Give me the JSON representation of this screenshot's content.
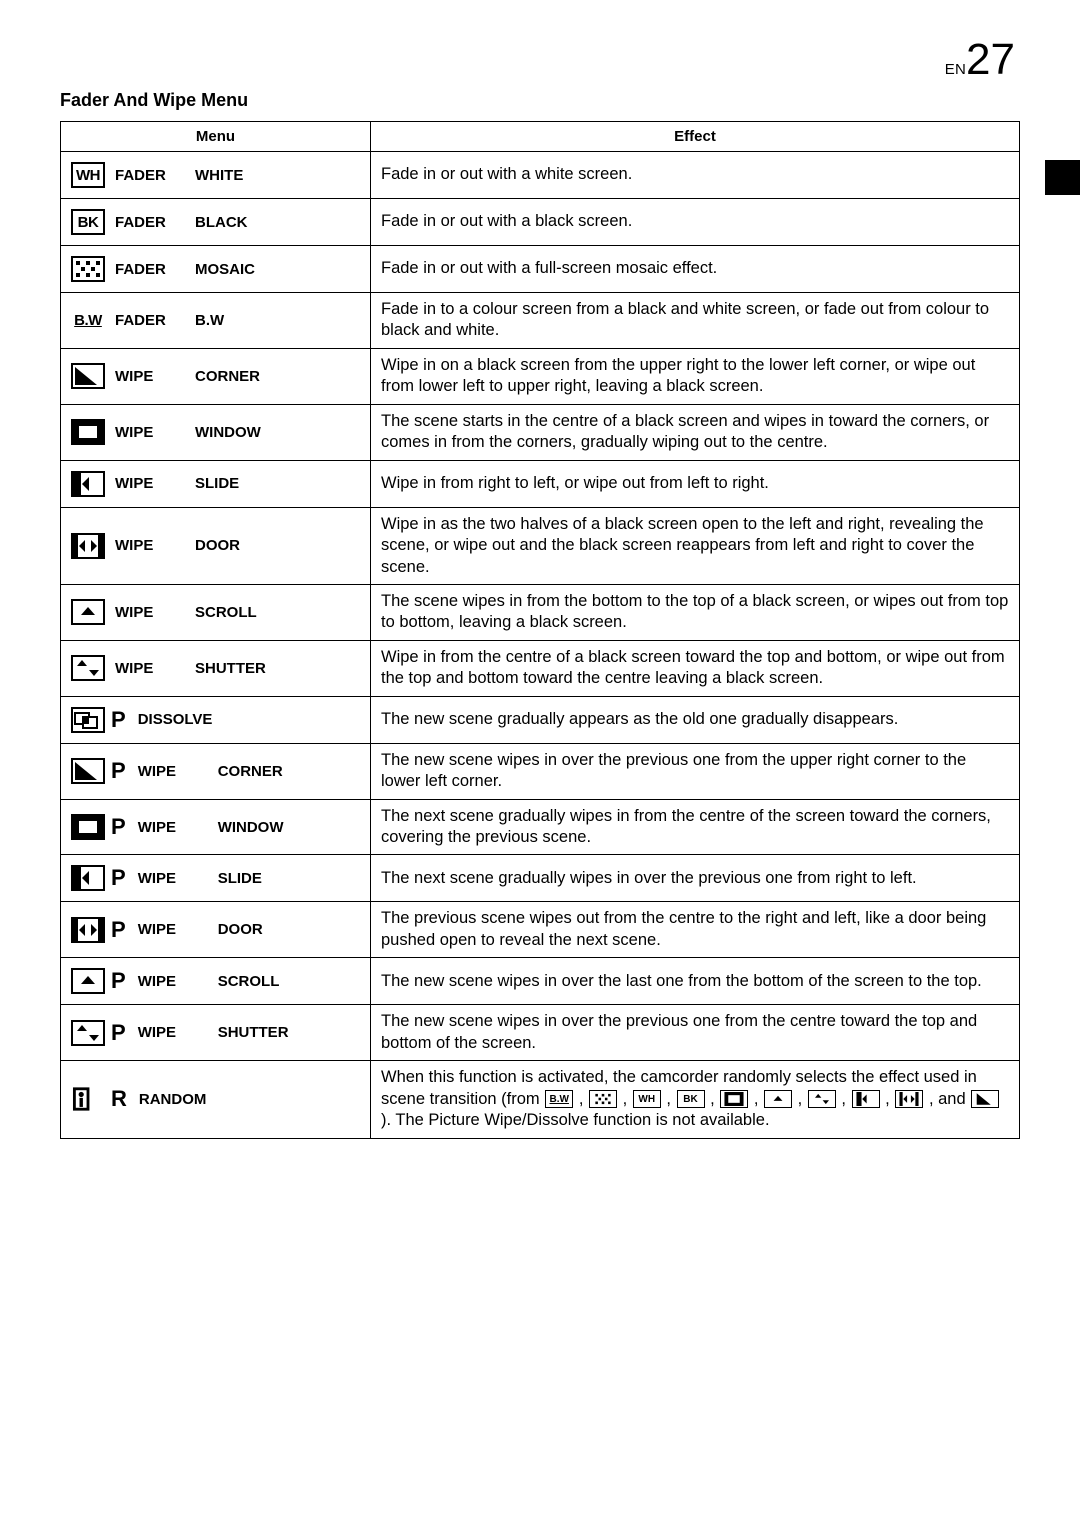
{
  "page_label_prefix": "EN",
  "page_number": "27",
  "title": "Fader And Wipe Menu",
  "headers": {
    "menu": "Menu",
    "effect": "Effect"
  },
  "rows": [
    {
      "icon_text": "WH",
      "label1": "FADER",
      "label2": "WHITE",
      "effect": "Fade in or out with a white screen."
    },
    {
      "icon_text": "BK",
      "label1": "FADER",
      "label2": "BLACK",
      "effect": "Fade in or out with a black screen."
    },
    {
      "icon_svg": "mosaic",
      "label1": "FADER",
      "label2": "MOSAIC",
      "effect": "Fade in or out with a full-screen mosaic effect."
    },
    {
      "icon_text": "B.W",
      "no_border": true,
      "label1": "FADER",
      "label2": "B.W",
      "effect": "Fade in to a colour screen from a black and white screen, or fade out from colour to black and white."
    },
    {
      "icon_svg": "corner",
      "label1": "WIPE",
      "label2": "CORNER",
      "effect": "Wipe in on a black screen from the upper right to the lower left corner, or wipe out from lower left to upper right, leaving a black screen."
    },
    {
      "icon_svg": "window",
      "label1": "WIPE",
      "label2": "WINDOW",
      "effect": "The scene starts in the centre of a black screen and wipes in toward the corners, or comes in from the corners, gradually wiping out to the centre."
    },
    {
      "icon_svg": "slide",
      "label1": "WIPE",
      "label2": "SLIDE",
      "effect": "Wipe in from right to left, or wipe out from left to right."
    },
    {
      "icon_svg": "door",
      "label1": "WIPE",
      "label2": "DOOR",
      "effect": "Wipe in as the two halves of a black screen open to the left and right, revealing the scene, or wipe out and the black screen reappears from left and right to cover the scene."
    },
    {
      "icon_svg": "scroll",
      "label1": "WIPE",
      "label2": "SCROLL",
      "effect": "The scene wipes in from the bottom to the top of a black screen, or wipes out from top to bottom, leaving a black screen."
    },
    {
      "icon_svg": "shutter",
      "label1": "WIPE",
      "label2": "SHUTTER",
      "effect": "Wipe in from the centre of a black screen toward the top and bottom, or wipe out from the top and bottom toward the centre leaving a black screen."
    },
    {
      "icon_svg": "dissolve",
      "suffix": "P",
      "label1": "DISSOLVE",
      "label2": "",
      "effect": "The new scene gradually appears as the old one gradually disappears."
    },
    {
      "icon_svg": "corner",
      "suffix": "P",
      "label1": "WIPE",
      "label2": "CORNER",
      "effect": "The new scene wipes in over the previous one from the upper right corner to the lower left corner."
    },
    {
      "icon_svg": "window",
      "suffix": "P",
      "label1": "WIPE",
      "label2": "WINDOW",
      "effect": "The next scene gradually wipes in from the centre of the screen toward the corners, covering the previous scene."
    },
    {
      "icon_svg": "slide",
      "suffix": "P",
      "label1": "WIPE",
      "label2": "SLIDE",
      "effect": "The next scene gradually wipes in over the previous one from right to left."
    },
    {
      "icon_svg": "door",
      "suffix": "P",
      "label1": "WIPE",
      "label2": "DOOR",
      "effect": "The previous scene wipes out from the centre to the right and left, like a door being pushed open to reveal the next scene."
    },
    {
      "icon_svg": "scroll",
      "suffix": "P",
      "label1": "WIPE",
      "label2": "SCROLL",
      "effect": "The new scene wipes in over the last one from the bottom of the screen to the top."
    },
    {
      "icon_svg": "shutter",
      "suffix": "P",
      "label1": "WIPE",
      "label2": "SHUTTER",
      "effect": "The new scene wipes in over the previous one from the centre toward the top and bottom of the screen."
    },
    {
      "icon_svg": "random",
      "suffix": "R",
      "no_border": true,
      "label1": "RANDOM",
      "label2": "",
      "effect_html": "random"
    }
  ],
  "random_text": {
    "p1": "When this function is activated, the camcorder randomly selects the effect used in scene transition (from ",
    "p2": " , ",
    "p3": " , ",
    "p4": " , ",
    "p5": " , ",
    "p6": " , ",
    "p7": " , ",
    "p8": " , ",
    "p9": " , ",
    "p10": " , and ",
    "p11": " ). The Picture Wipe/Dissolve function is not available."
  }
}
